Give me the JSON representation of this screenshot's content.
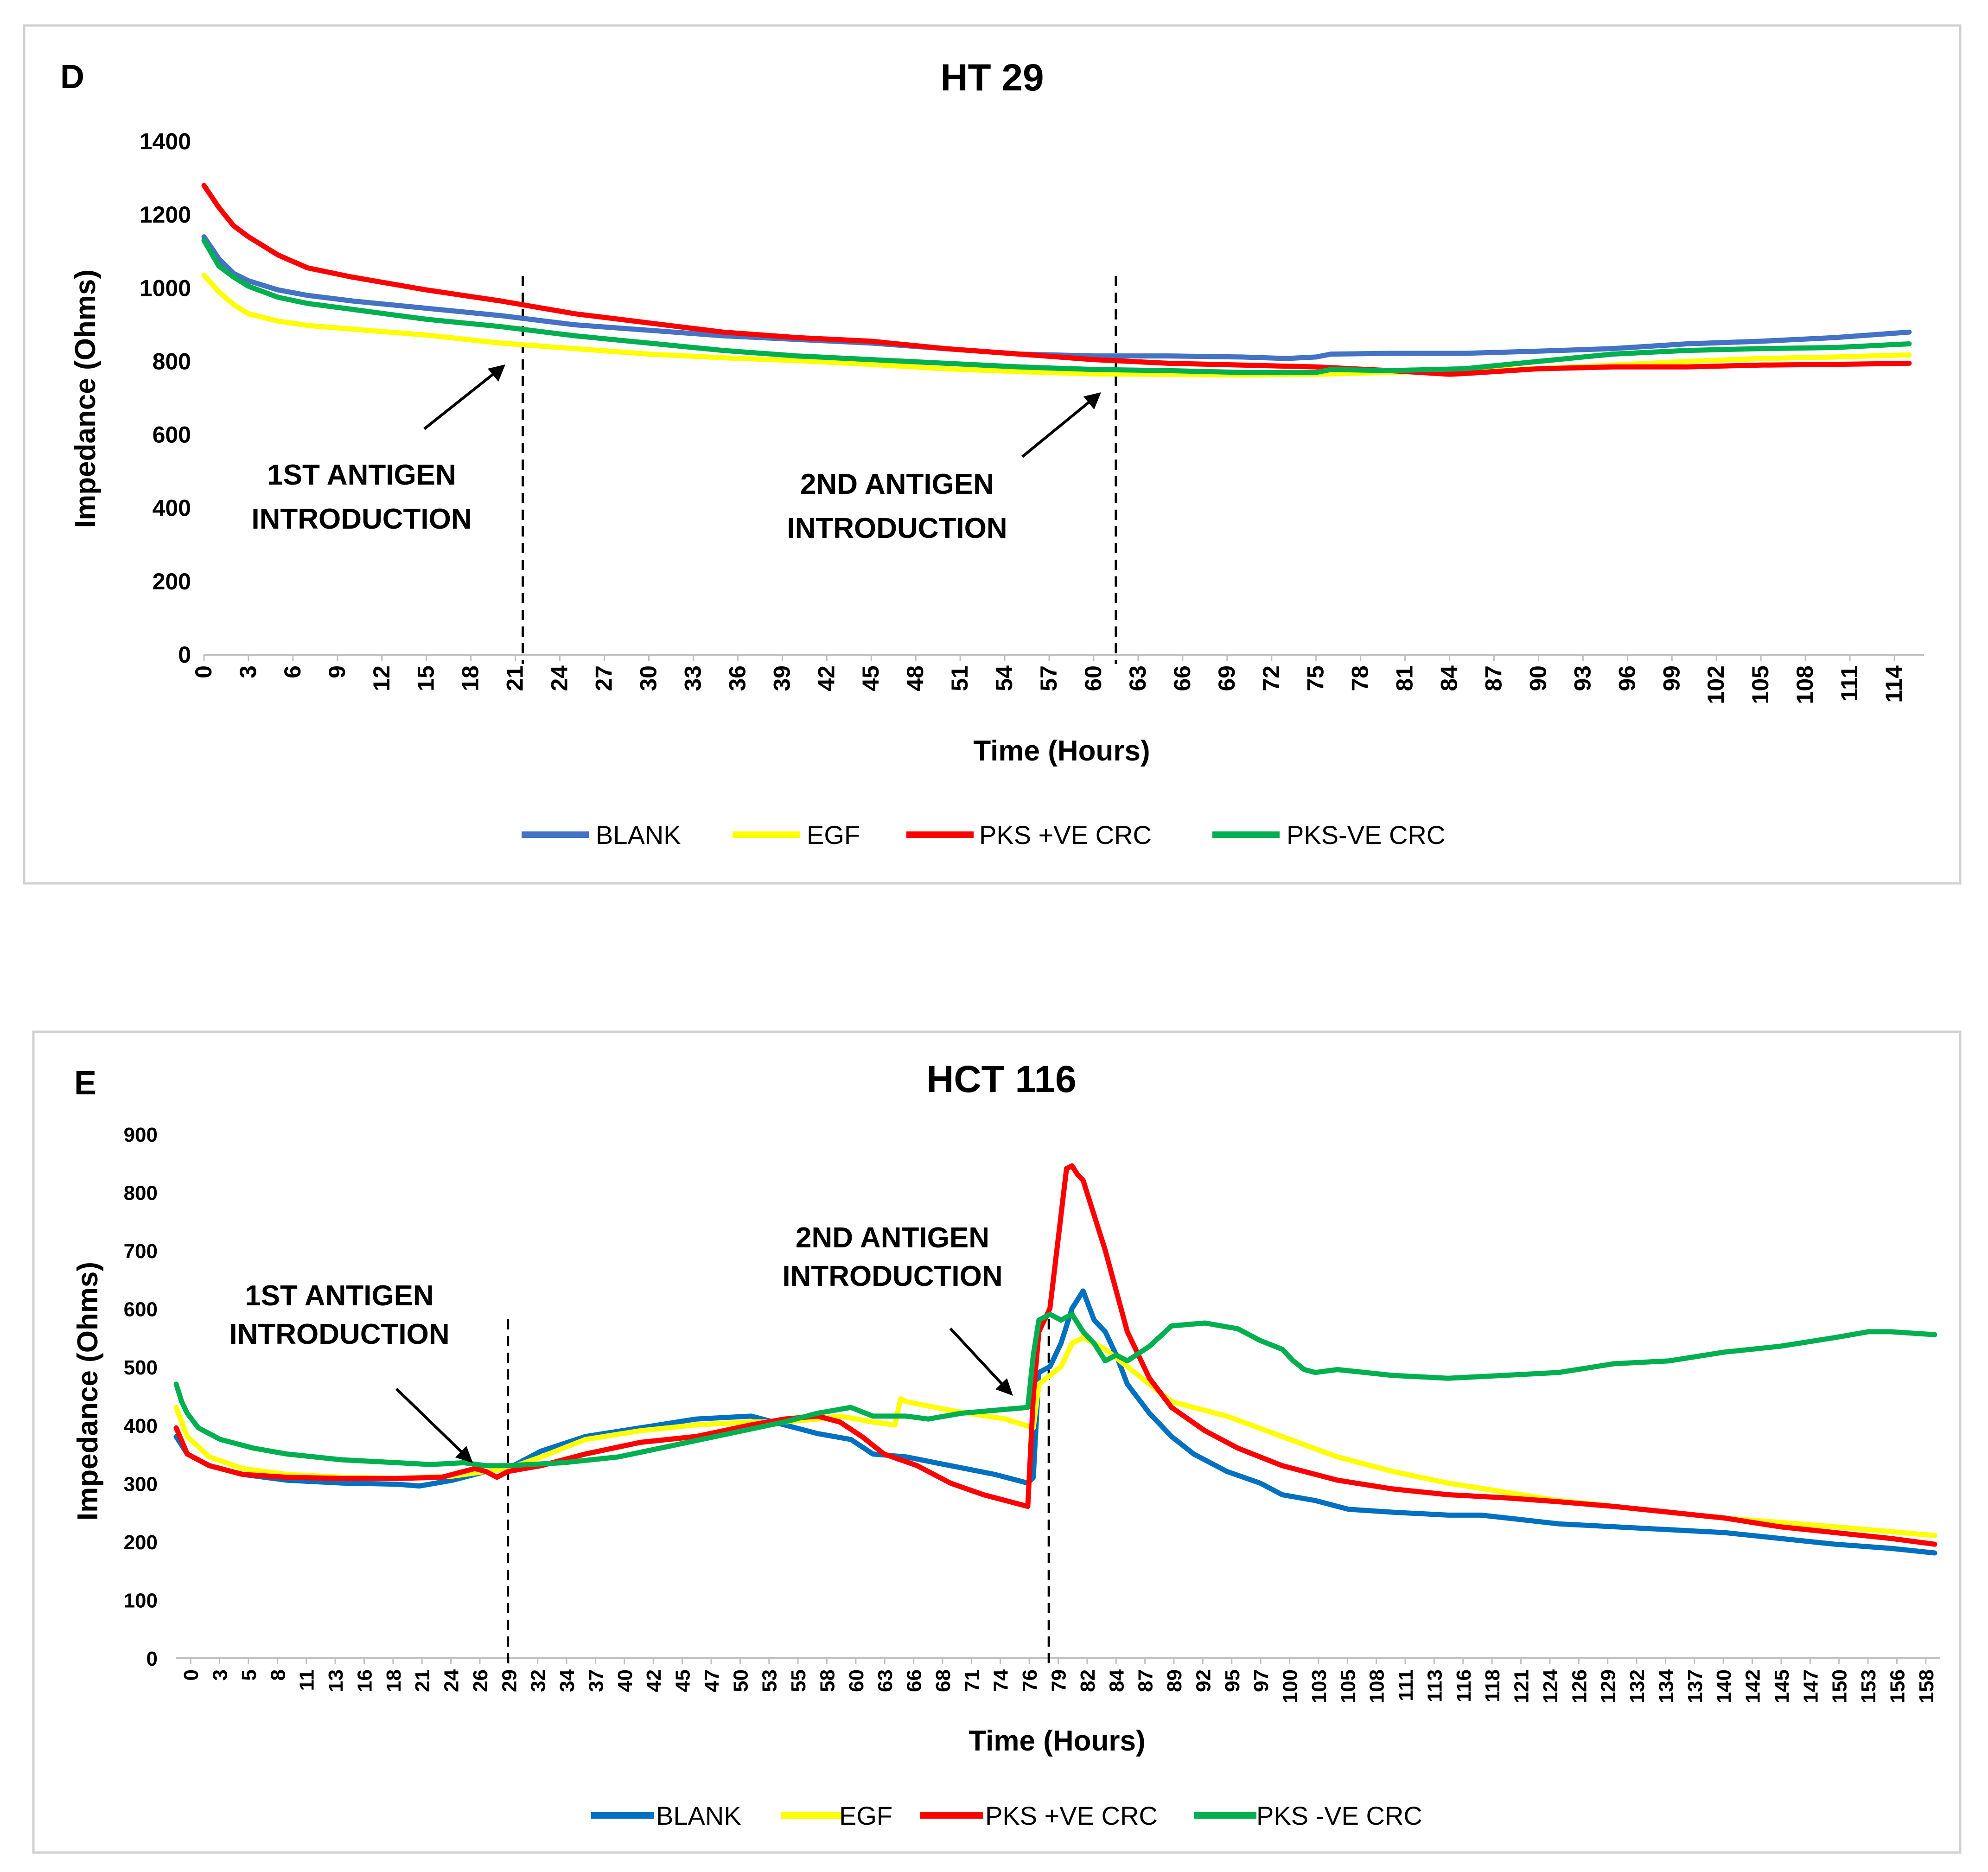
{
  "chart_data": [
    {
      "type": "line",
      "panel": "D",
      "title": "HT 29",
      "xlabel": "Time (Hours)",
      "ylabel": "Impedance (Ohms)",
      "xlim": [
        0,
        116
      ],
      "ylim": [
        0,
        1400
      ],
      "yticks": [
        0,
        200,
        400,
        600,
        800,
        1000,
        1200,
        1400
      ],
      "xtick_step": 3,
      "xtick_last": 114,
      "grid": false,
      "legend_position": "bottom",
      "annotations": [
        {
          "line1": "1ST ANTIGEN",
          "line2": "INTRODUCTION",
          "at_x": 21.5
        },
        {
          "line1": "2ND ANTIGEN",
          "line2": "INTRODUCTION",
          "at_x": 61.5
        }
      ],
      "series": [
        {
          "name": "BLANK",
          "color": "#4472C4",
          "x": [
            0,
            1,
            2,
            3,
            5,
            7,
            10,
            15,
            20,
            25,
            30,
            35,
            40,
            45,
            50,
            55,
            60,
            65,
            70,
            73,
            75,
            76,
            80,
            85,
            90,
            95,
            100,
            105,
            110,
            115
          ],
          "y": [
            1140,
            1080,
            1040,
            1020,
            995,
            980,
            965,
            945,
            925,
            900,
            885,
            870,
            860,
            850,
            835,
            820,
            815,
            815,
            812,
            808,
            812,
            820,
            822,
            822,
            828,
            835,
            848,
            855,
            865,
            880
          ]
        },
        {
          "name": "EGF",
          "color": "#FFFF00",
          "x": [
            0,
            1,
            2,
            3,
            5,
            7,
            10,
            15,
            20,
            25,
            30,
            35,
            40,
            45,
            50,
            55,
            60,
            65,
            70,
            75,
            80,
            85,
            90,
            95,
            100,
            105,
            110,
            115
          ],
          "y": [
            1035,
            990,
            955,
            930,
            910,
            898,
            888,
            872,
            850,
            835,
            820,
            810,
            802,
            792,
            780,
            772,
            766,
            765,
            763,
            765,
            770,
            775,
            780,
            790,
            800,
            808,
            812,
            818
          ]
        },
        {
          "name": "PKS +VE CRC",
          "color": "#FF0000",
          "x": [
            0,
            1,
            2,
            3,
            5,
            7,
            10,
            15,
            20,
            25,
            30,
            35,
            40,
            45,
            50,
            55,
            60,
            65,
            70,
            75,
            80,
            84,
            85,
            90,
            95,
            100,
            105,
            110,
            115
          ],
          "y": [
            1280,
            1220,
            1170,
            1140,
            1090,
            1055,
            1030,
            995,
            965,
            930,
            905,
            880,
            865,
            855,
            835,
            820,
            805,
            795,
            790,
            785,
            775,
            765,
            767,
            780,
            785,
            785,
            790,
            792,
            795
          ]
        },
        {
          "name": "PKS-VE CRC",
          "color": "#00B050",
          "x": [
            0,
            1,
            2,
            3,
            5,
            7,
            10,
            15,
            20,
            25,
            30,
            35,
            40,
            45,
            50,
            55,
            60,
            65,
            70,
            75,
            76,
            80,
            85,
            90,
            95,
            100,
            105,
            110,
            115
          ],
          "y": [
            1130,
            1060,
            1030,
            1005,
            975,
            958,
            942,
            915,
            895,
            870,
            850,
            830,
            815,
            805,
            795,
            785,
            778,
            775,
            770,
            770,
            778,
            775,
            780,
            800,
            820,
            830,
            835,
            838,
            848
          ]
        }
      ]
    },
    {
      "type": "line",
      "panel": "E",
      "title": "HCT 116",
      "xlabel": "Time (Hours)",
      "ylabel": "Impedance  (Ohms)",
      "xlim": [
        0,
        159.5
      ],
      "ylim": [
        0,
        900
      ],
      "yticks": [
        0,
        100,
        200,
        300,
        400,
        500,
        600,
        700,
        800,
        900
      ],
      "xtick_labels": [
        "0",
        "3",
        "5",
        "8",
        "11",
        "13",
        "16",
        "18",
        "21",
        "24",
        "26",
        "29",
        "32",
        "34",
        "37",
        "40",
        "42",
        "45",
        "47",
        "50",
        "53",
        "55",
        "58",
        "60",
        "63",
        "66",
        "68",
        "71",
        "74",
        "76",
        "79",
        "82",
        "84",
        "87",
        "89",
        "92",
        "95",
        "97",
        "100",
        "103",
        "105",
        "108",
        "111",
        "113",
        "116",
        "118",
        "121",
        "124",
        "126",
        "129",
        "132",
        "134",
        "137",
        "140",
        "142",
        "145",
        "147",
        "150",
        "153",
        "156",
        "158"
      ],
      "grid": false,
      "legend_position": "bottom",
      "annotations": [
        {
          "line1": "1ST ANTIGEN",
          "line2": "INTRODUCTION",
          "at_x": 30
        },
        {
          "line1": "2ND ANTIGEN",
          "line2": "INTRODUCTION",
          "at_x": 78.9
        }
      ],
      "series": [
        {
          "name": "BLANK",
          "color": "#0070C0",
          "x": [
            0,
            1,
            3,
            6,
            10,
            15,
            20,
            22,
            25,
            28,
            30,
            33,
            37,
            42,
            47,
            52,
            55,
            58,
            61,
            63,
            66,
            70,
            74,
            77,
            77.5,
            78,
            79,
            80,
            81,
            82,
            83,
            84,
            85,
            86,
            88,
            90,
            92,
            95,
            98,
            100,
            103,
            106,
            110,
            115,
            118,
            125,
            130,
            135,
            140,
            145,
            150,
            155,
            159
          ],
          "y": [
            380,
            350,
            330,
            315,
            305,
            300,
            298,
            295,
            305,
            320,
            325,
            355,
            380,
            395,
            410,
            415,
            400,
            385,
            375,
            350,
            345,
            330,
            315,
            300,
            310,
            490,
            500,
            540,
            600,
            630,
            580,
            560,
            520,
            470,
            420,
            380,
            350,
            320,
            300,
            280,
            270,
            255,
            250,
            245,
            245,
            230,
            225,
            220,
            215,
            205,
            195,
            188,
            180
          ]
        },
        {
          "name": "EGF",
          "color": "#FFFF00",
          "x": [
            0,
            1,
            3,
            6,
            10,
            15,
            20,
            25,
            28,
            30,
            33,
            37,
            42,
            47,
            52,
            55,
            58,
            60,
            63,
            65,
            65.5,
            66,
            70,
            75,
            77.5,
            78,
            80,
            81,
            82,
            84,
            86,
            88,
            90,
            95,
            100,
            105,
            110,
            115,
            120,
            125,
            130,
            140,
            150,
            159
          ],
          "y": [
            430,
            380,
            345,
            325,
            315,
            310,
            308,
            312,
            320,
            325,
            345,
            375,
            390,
            400,
            405,
            405,
            410,
            415,
            405,
            400,
            445,
            440,
            425,
            410,
            395,
            470,
            500,
            540,
            550,
            530,
            500,
            470,
            440,
            415,
            380,
            345,
            320,
            300,
            285,
            270,
            260,
            240,
            225,
            210
          ]
        },
        {
          "name": "PKS +VE CRC",
          "color": "#FF0000",
          "x": [
            0,
            1,
            3,
            6,
            10,
            15,
            20,
            24,
            27,
            28,
            29,
            30,
            33,
            37,
            42,
            47,
            52,
            55,
            58,
            60,
            62,
            64,
            67,
            70,
            73,
            76,
            77,
            77.5,
            78,
            79,
            80,
            80.5,
            81,
            81.5,
            82,
            83,
            84,
            85,
            86,
            88,
            90,
            93,
            96,
            100,
            105,
            110,
            115,
            120,
            125,
            130,
            135,
            140,
            145,
            150,
            155,
            159
          ],
          "y": [
            395,
            350,
            330,
            315,
            310,
            308,
            308,
            310,
            325,
            320,
            310,
            320,
            330,
            350,
            370,
            380,
            400,
            410,
            415,
            405,
            380,
            350,
            330,
            300,
            280,
            265,
            260,
            450,
            560,
            600,
            760,
            840,
            845,
            830,
            820,
            760,
            700,
            630,
            560,
            480,
            430,
            390,
            360,
            330,
            305,
            290,
            280,
            275,
            268,
            260,
            250,
            240,
            225,
            215,
            205,
            195
          ]
        },
        {
          "name": "PKS -VE CRC",
          "color": "#00B050",
          "x": [
            0,
            0.5,
            1,
            2,
            4,
            7,
            10,
            15,
            20,
            23,
            26,
            28,
            30,
            35,
            40,
            45,
            50,
            55,
            58,
            61,
            63,
            66,
            68,
            71,
            74,
            77,
            77.5,
            78,
            79,
            80,
            81,
            82,
            83,
            84,
            85,
            86,
            88,
            90,
            93,
            96,
            98,
            100,
            101,
            102,
            103,
            105,
            110,
            115,
            120,
            125,
            130,
            135,
            140,
            145,
            150,
            153,
            155,
            159
          ],
          "y": [
            470,
            440,
            420,
            395,
            375,
            360,
            350,
            340,
            335,
            332,
            335,
            330,
            330,
            335,
            345,
            365,
            385,
            405,
            420,
            430,
            415,
            415,
            410,
            420,
            425,
            430,
            520,
            580,
            590,
            580,
            590,
            560,
            540,
            510,
            520,
            510,
            535,
            570,
            575,
            565,
            545,
            530,
            510,
            495,
            490,
            495,
            485,
            480,
            485,
            490,
            505,
            510,
            525,
            535,
            550,
            560,
            560,
            555
          ]
        }
      ]
    }
  ]
}
